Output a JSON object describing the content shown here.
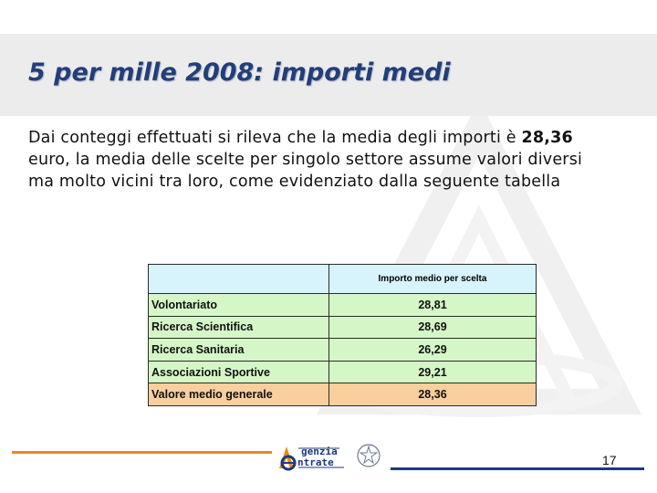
{
  "slide": {
    "title": "5 per mille 2008: importi medi",
    "body": {
      "part1": "Dai conteggi effettuati  si rileva che la media degli importi è ",
      "highlight": "28,36",
      "part2": " euro, la media delle scelte per singolo settore assume valori diversi ma molto vicini tra loro, come evidenziato dalla seguente tabella"
    },
    "table": {
      "header_left": "",
      "header_right": "Importo medio per scelta",
      "rows": [
        {
          "label": "Volontariato",
          "value": "28,81"
        },
        {
          "label": "Ricerca Scientifica",
          "value": "28,69"
        },
        {
          "label": "Ricerca Sanitaria",
          "value": "26,29"
        },
        {
          "label": "Associazioni Sportive",
          "value": "29,21"
        },
        {
          "label": "Valore medio generale",
          "value": "28,36"
        }
      ]
    },
    "footer": {
      "logo_line1": "genzia",
      "logo_line2": "ntrate",
      "page_number": "17"
    },
    "colors": {
      "title": "#233e78",
      "header_band": "#ececec",
      "table_header": "#d7f3fb",
      "table_rows": "#d5f7c7",
      "table_total": "#f9cf9e",
      "footer_orange": "#e98a12",
      "footer_blue": "#1e3a7c"
    }
  }
}
